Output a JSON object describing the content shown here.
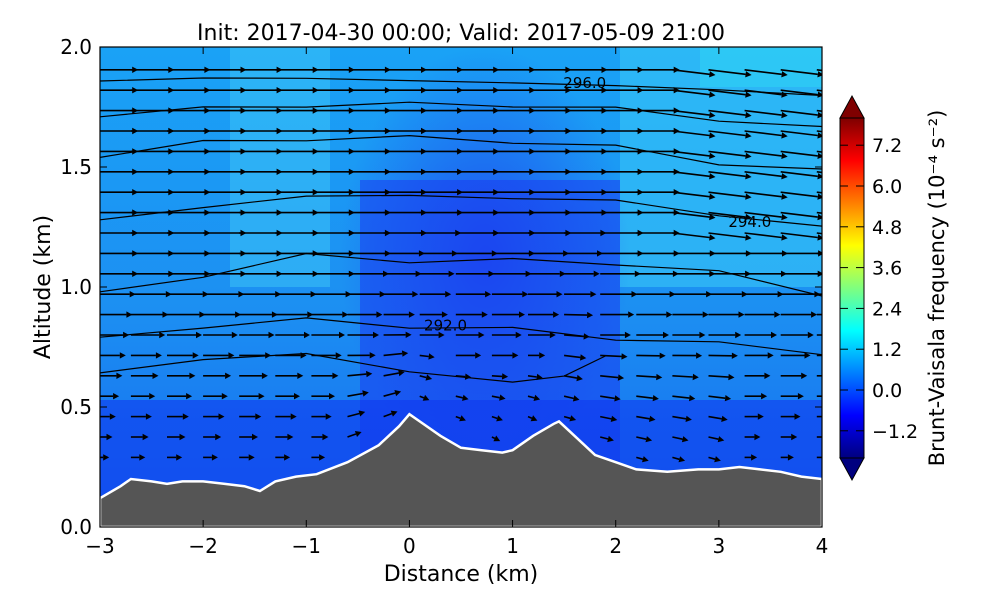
{
  "chart_data": {
    "type": "heatmap",
    "title": "Init: 2017-04-30 00:00; Valid: 2017-05-09 21:00",
    "xlabel": "Distance (km)",
    "ylabel": "Altitude (km)",
    "xlim": [
      -3,
      4
    ],
    "ylim": [
      0.0,
      2.0
    ],
    "xticks": [
      -3,
      -2,
      -1,
      0,
      1,
      2,
      3,
      4
    ],
    "xtick_labels": [
      "−3",
      "−2",
      "−1",
      "0",
      "1",
      "2",
      "3",
      "4"
    ],
    "yticks": [
      0.0,
      0.5,
      1.0,
      1.5,
      2.0
    ],
    "ytick_labels": [
      "0.0",
      "0.5",
      "1.0",
      "1.5",
      "2.0"
    ],
    "grid": false,
    "colorbar": {
      "label": "Brunt-Vaisala frequency (10⁻⁴ s⁻²)",
      "range": [
        -2.0,
        8.0
      ],
      "ticks": [
        -1.2,
        0.0,
        1.2,
        2.4,
        3.6,
        4.8,
        6.0,
        7.2
      ],
      "tick_labels": [
        "−1.2",
        "0.0",
        "1.2",
        "2.4",
        "3.6",
        "4.8",
        "6.0",
        "7.2"
      ],
      "extend": "both",
      "colormap": "jet",
      "colors": [
        "#00007f",
        "#0000ff",
        "#007fff",
        "#00ffff",
        "#7fff7f",
        "#ffff00",
        "#ff7f00",
        "#ff0000",
        "#7f0000"
      ]
    },
    "terrain": {
      "color": "#555555",
      "outline": "#ffffff",
      "x": [
        -3.0,
        -2.8,
        -2.7,
        -2.5,
        -2.35,
        -2.2,
        -2.0,
        -1.8,
        -1.6,
        -1.45,
        -1.3,
        -1.1,
        -0.9,
        -0.6,
        -0.3,
        -0.1,
        0.0,
        0.1,
        0.3,
        0.5,
        0.7,
        0.9,
        1.0,
        1.2,
        1.4,
        1.45,
        1.6,
        1.8,
        2.0,
        2.2,
        2.5,
        2.8,
        3.0,
        3.2,
        3.4,
        3.6,
        3.8,
        4.0
      ],
      "y": [
        0.12,
        0.17,
        0.2,
        0.19,
        0.18,
        0.19,
        0.19,
        0.18,
        0.17,
        0.15,
        0.19,
        0.21,
        0.22,
        0.27,
        0.34,
        0.42,
        0.47,
        0.44,
        0.38,
        0.33,
        0.32,
        0.31,
        0.32,
        0.38,
        0.43,
        0.44,
        0.38,
        0.3,
        0.27,
        0.24,
        0.23,
        0.24,
        0.24,
        0.25,
        0.24,
        0.23,
        0.21,
        0.2
      ]
    },
    "contour_labels": [
      {
        "text": "296.0",
        "x": 1.7,
        "y": 1.85
      },
      {
        "text": "294.0",
        "x": 3.3,
        "y": 1.27
      },
      {
        "text": "292.0",
        "x": 0.35,
        "y": 0.84
      }
    ],
    "isentropes": [
      {
        "x": [
          -3,
          -2,
          -1,
          0,
          1,
          2,
          3,
          4
        ],
        "y": [
          1.86,
          1.87,
          1.87,
          1.86,
          1.85,
          1.84,
          1.82,
          1.8
        ]
      },
      {
        "x": [
          -3,
          -2,
          -1,
          0,
          1,
          2,
          3,
          4
        ],
        "y": [
          1.72,
          1.74,
          1.76,
          1.76,
          1.76,
          1.74,
          1.7,
          1.66
        ]
      },
      {
        "x": [
          -3,
          -2,
          -1,
          0,
          1,
          2,
          3,
          4
        ],
        "y": [
          1.55,
          1.6,
          1.62,
          1.62,
          1.61,
          1.58,
          1.52,
          1.48
        ]
      },
      {
        "x": [
          -3,
          -2,
          -1,
          0,
          1,
          2,
          3,
          4
        ],
        "y": [
          1.28,
          1.33,
          1.38,
          1.38,
          1.37,
          1.36,
          1.3,
          1.25
        ]
      },
      {
        "x": [
          -3,
          -2,
          -1,
          0,
          1,
          2,
          3,
          4
        ],
        "y": [
          0.97,
          1.05,
          1.13,
          1.11,
          1.11,
          1.1,
          1.06,
          0.97
        ]
      },
      {
        "x": [
          -3,
          -2,
          -1,
          0,
          1,
          2,
          3,
          4
        ],
        "y": [
          0.78,
          0.84,
          0.86,
          0.84,
          0.82,
          0.79,
          0.76,
          0.73
        ]
      },
      {
        "x": [
          -3,
          -2,
          -1,
          0,
          1,
          1.5,
          1.9
        ],
        "y": [
          0.64,
          0.7,
          0.72,
          0.65,
          0.6,
          0.64,
          0.72
        ]
      }
    ]
  }
}
